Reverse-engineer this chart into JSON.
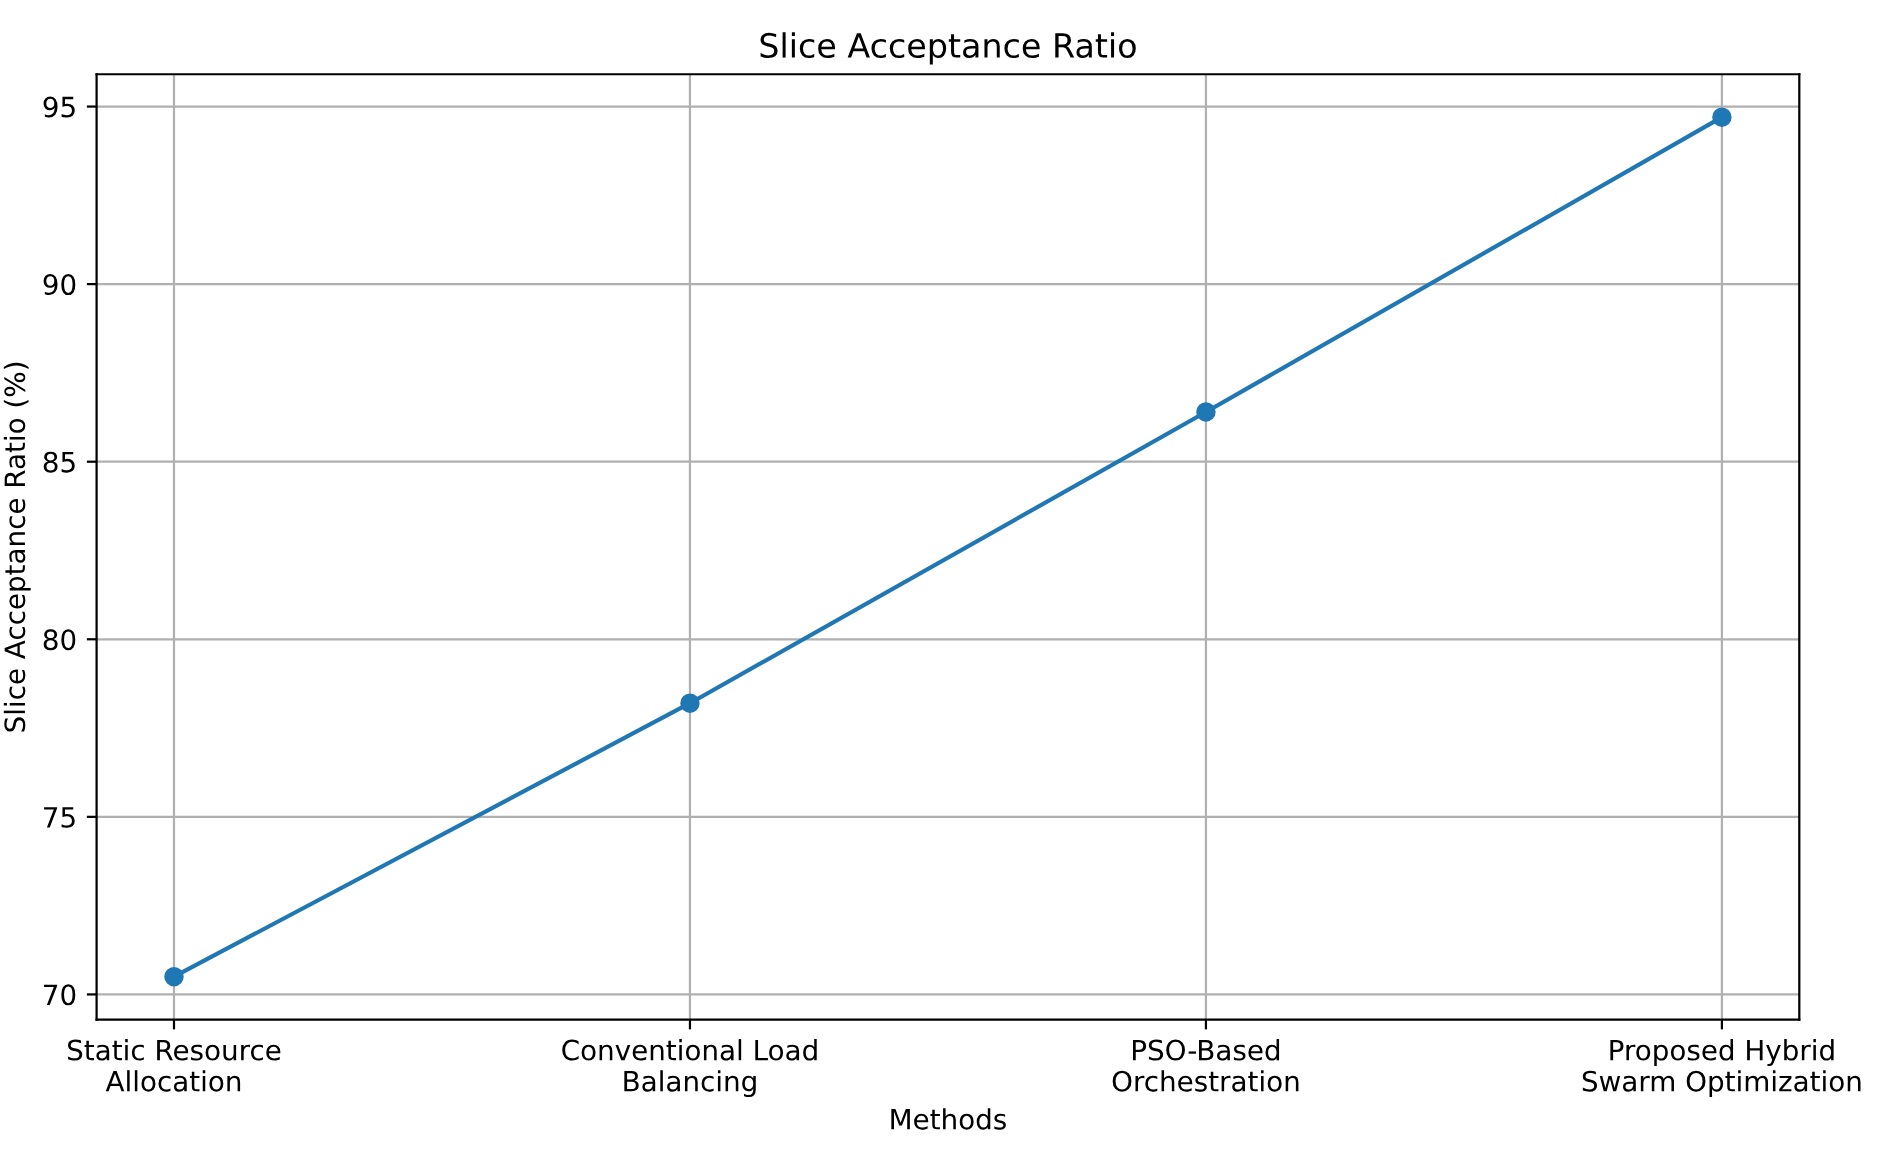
{
  "chart_data": {
    "type": "line",
    "title": "Slice Acceptance Ratio",
    "xlabel": "Methods",
    "ylabel": "Slice Acceptance Ratio (%)",
    "categories": [
      "Static Resource\nAllocation",
      "Conventional Load\nBalancing",
      "PSO-Based\nOrchestration",
      "Proposed Hybrid\nSwarm Optimization"
    ],
    "series": [
      {
        "color": "#1f77b4",
        "values": [
          70.5,
          78.2,
          86.4,
          94.7
        ]
      }
    ],
    "ylim": [
      69.29,
      95.91
    ],
    "yticks": [
      70,
      75,
      80,
      85,
      90,
      95
    ],
    "grid": true,
    "marker": "circle",
    "line_style": "solid"
  }
}
